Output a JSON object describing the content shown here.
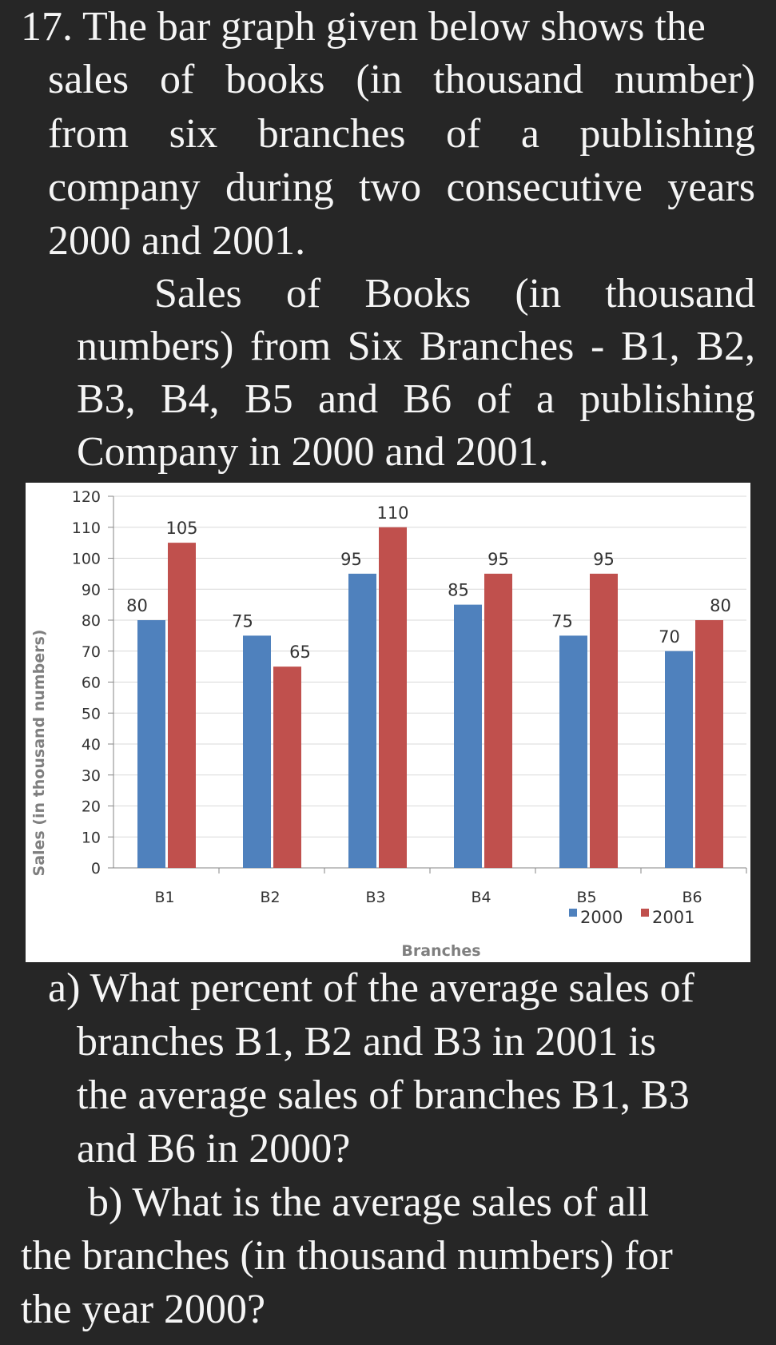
{
  "question": {
    "lines": [
      "17. The bar graph given below shows the",
      "sales of books (in thousand number)",
      "from six branches of a publishing",
      "company during two consecutive years",
      "2000 and 2001."
    ],
    "caption_lines": [
      "Sales of Books (in thousand",
      "numbers) from Six Branches - B1, B2,",
      "B3, B4, B5 and B6 of a publishing",
      "Company in 2000 and 2001."
    ],
    "part_a_lines": [
      "a) What percent of the average sales of",
      "branches B1, B2 and B3 in 2001 is",
      "the average sales of branches B1, B3",
      "and B6 in 2000?"
    ],
    "part_b_lines": [
      "b) What is the average sales of all",
      "the branches (in thousand numbers) for",
      "the year 2000?"
    ]
  },
  "chart_data": {
    "type": "bar",
    "title": "",
    "xlabel": "Branches",
    "ylabel": "Sales (in thousand numbers)",
    "categories": [
      "B1",
      "B2",
      "B3",
      "B4",
      "B5",
      "B6"
    ],
    "ylim": [
      0,
      120
    ],
    "yticks": [
      0,
      10,
      20,
      30,
      40,
      50,
      60,
      70,
      80,
      90,
      100,
      110,
      120
    ],
    "grid": true,
    "legend_position": "bottom-right",
    "series": [
      {
        "name": "2000",
        "color": "#4f81bd",
        "values": [
          80,
          75,
          95,
          85,
          75,
          70
        ]
      },
      {
        "name": "2001",
        "color": "#c0504d",
        "values": [
          105,
          65,
          110,
          95,
          95,
          80
        ]
      }
    ]
  }
}
